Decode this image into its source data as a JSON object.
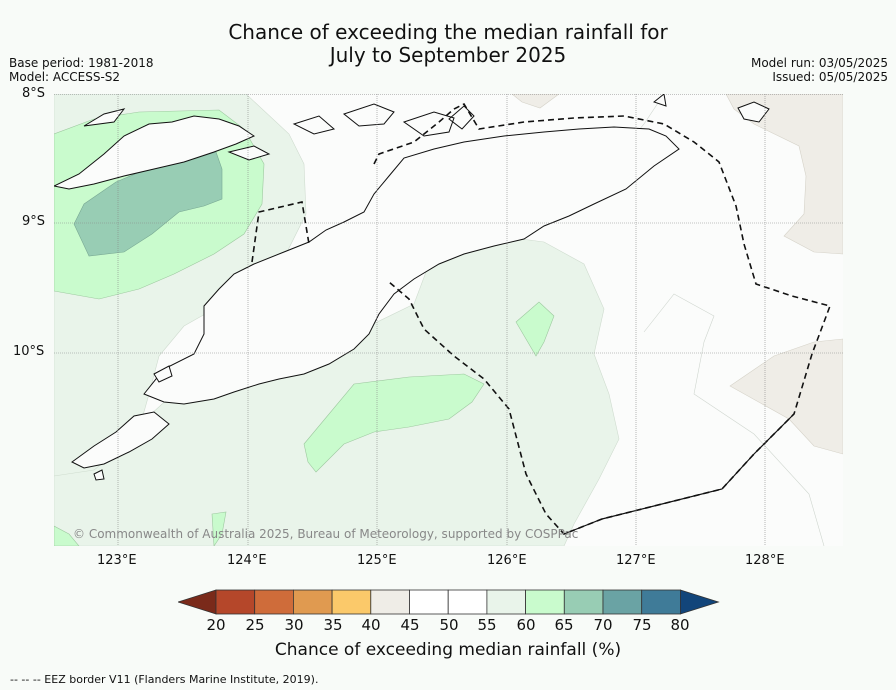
{
  "title": {
    "line1": "Chance of exceeding the median rainfall for",
    "line2": "July to September 2025"
  },
  "meta": {
    "base_period": "Base period: 1981-2018",
    "model": "Model: ACCESS-S2",
    "model_run": "Model run: 03/05/2025",
    "issued": "Issued: 05/05/2025"
  },
  "axes": {
    "lat_labels": [
      "8°S",
      "9°S",
      "10°S"
    ],
    "lon_labels": [
      "123°E",
      "124°E",
      "125°E",
      "126°E",
      "127°E",
      "128°E"
    ]
  },
  "copyright": "© Commonwealth of Australia 2025, Bureau of Meteorology, supported by COSPPac",
  "colorbar": {
    "ticks": [
      "20",
      "25",
      "30",
      "35",
      "40",
      "45",
      "50",
      "55",
      "60",
      "65",
      "70",
      "75",
      "80"
    ],
    "colors": [
      "#7a2a1a",
      "#b5472a",
      "#cf6c3a",
      "#e09a50",
      "#fbc96a",
      "#efede7",
      "#ffffff",
      "#ffffff",
      "#e9f4ea",
      "#c9fbcd",
      "#98cdb4",
      "#6aa3a4",
      "#3f7b98",
      "#12457a"
    ],
    "label": "Chance of exceeding median rainfall (%)"
  },
  "legend_note": "--  --  -- EEZ border V11 (Flanders Marine Institute, 2019).",
  "map_colors": {
    "band_55_60": "#e9f4ea",
    "band_60_65": "#c9fbcd",
    "band_65_70": "#98cdb4",
    "band_40_45": "#efede7",
    "background": "#f8fbf8"
  }
}
